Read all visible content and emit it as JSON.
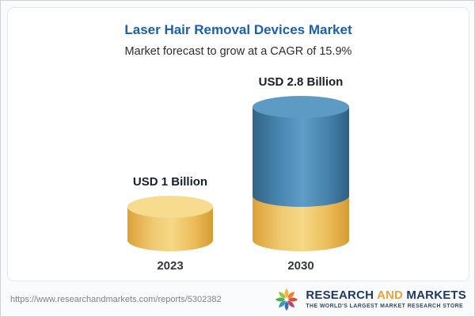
{
  "chart_data": {
    "type": "bar",
    "title": "Laser Hair Removal Devices Market",
    "subtitle": "Market forecast to grow at a CAGR of 15.9%",
    "cagr_percent": 15.9,
    "unit": "USD Billion",
    "categories": [
      "2023",
      "2030"
    ],
    "values": [
      1,
      2.8
    ],
    "value_labels": [
      "USD 1 Billion",
      "USD 2.8 Billion"
    ],
    "legend": null,
    "grid": false,
    "colors": {
      "title_accent": "#1E5FA9",
      "bar_base_gold": "#EFC45F",
      "bar_growth_blue": "#4F8DB9"
    }
  },
  "footer": {
    "url": "https://www.researchandmarkets.com/reports/5302382",
    "logo": {
      "icon": "pinwheel-flower",
      "name_part1": "RESEARCH ",
      "name_part2": "AND",
      "name_part3": " MARKETS",
      "tagline": "THE WORLD'S LARGEST MARKET RESEARCH STORE"
    }
  }
}
